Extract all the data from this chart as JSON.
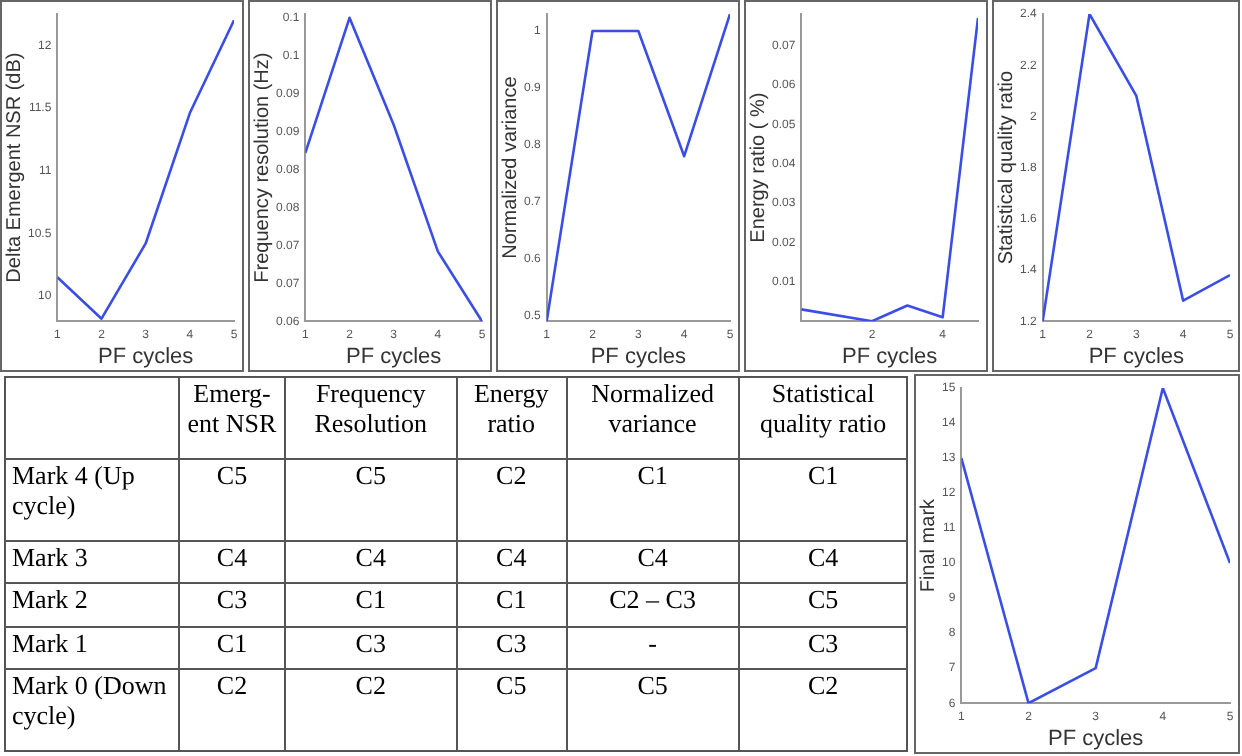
{
  "chart_data": [
    {
      "type": "line",
      "xlabel": "PF cycles",
      "ylabel": "Delta Emergent NSR (dB)",
      "x": [
        1,
        2,
        3,
        4,
        5
      ],
      "values": [
        10.15,
        9.82,
        10.42,
        11.46,
        12.2
      ],
      "color": "#3a4ee6",
      "xlim": [
        1,
        5
      ],
      "xticks": [
        1,
        2,
        3,
        4,
        5
      ],
      "ylim": [
        9.8,
        12.25
      ],
      "yticks": [
        10,
        10.5,
        11,
        11.5,
        12
      ],
      "grid": false,
      "marker": "none",
      "line_style": "solid"
    },
    {
      "type": "line",
      "xlabel": "PF cycles",
      "ylabel": "Frequency resolution (Hz)",
      "x": [
        1,
        2,
        3,
        4,
        5
      ],
      "values": [
        0.0822,
        0.1,
        0.0859,
        0.0692,
        0.06
      ],
      "color": "#3a4ee6",
      "xlim": [
        1,
        5
      ],
      "xticks": [
        1,
        2,
        3,
        4,
        5
      ],
      "ylim": [
        0.06,
        0.1005
      ],
      "yticks": [
        0.06,
        {
          "value": 0.065,
          "label": "0.07"
        },
        0.07,
        {
          "value": 0.075,
          "label": "0.08"
        },
        0.08,
        {
          "value": 0.085,
          "label": "0.09"
        },
        0.09,
        {
          "value": 0.095,
          "label": "0.1"
        },
        0.1
      ],
      "grid": false,
      "marker": "none",
      "line_style": "solid"
    },
    {
      "type": "line",
      "xlabel": "PF cycles",
      "ylabel": "Normalized variance",
      "x": [
        1,
        2,
        3,
        4,
        5
      ],
      "values": [
        0.49,
        1.0,
        1.0,
        0.78,
        1.03
      ],
      "color": "#3a4ee6",
      "xlim": [
        1,
        5
      ],
      "xticks": [
        1,
        2,
        3,
        4,
        5
      ],
      "ylim": [
        0.49,
        1.03
      ],
      "yticks": [
        0.5,
        0.6,
        0.7,
        0.8,
        0.9,
        1
      ],
      "grid": false,
      "marker": "none",
      "line_style": "solid"
    },
    {
      "type": "line",
      "xlabel": "PF cycles",
      "ylabel": "Energy ratio ( %)",
      "x": [
        0,
        2,
        3,
        4,
        5
      ],
      "values": [
        0.003,
        0,
        0.004,
        0.001,
        0.077
      ],
      "color": "#3a4ee6",
      "xlim": [
        0,
        5
      ],
      "xticks": [
        2,
        4
      ],
      "ylim": [
        0,
        0.078
      ],
      "yticks": [
        0.01,
        0.02,
        0.03,
        0.04,
        0.05,
        0.06,
        0.07
      ],
      "grid": false,
      "marker": "none",
      "line_style": "solid"
    },
    {
      "type": "line",
      "xlabel": "PF cycles",
      "ylabel": "Statistical quality ratio",
      "x": [
        1,
        2,
        3,
        4,
        5
      ],
      "values": [
        1.2,
        2.4,
        2.08,
        1.28,
        1.38
      ],
      "color": "#3a4ee6",
      "xlim": [
        1,
        5
      ],
      "xticks": [
        1,
        2,
        3,
        4,
        5
      ],
      "ylim": [
        1.2,
        2.4
      ],
      "yticks": [
        1.2,
        1.4,
        1.6,
        1.8,
        2,
        2.2,
        2.4
      ],
      "grid": false,
      "marker": "none",
      "line_style": "solid"
    },
    {
      "type": "other",
      "categories": [
        null,
        "Emerg-ent NSR",
        "Frequency Resolution",
        "Energy ratio",
        "Normalized variance",
        "Statistical quality ratio"
      ],
      "y_categories": [
        "Mark 4 (Up cycle)",
        "Mark 3",
        "Mark 2",
        "Mark 1",
        "Mark 0 (Down cycle)"
      ],
      "cell_labels": [
        [
          "C5",
          "C5",
          "C2",
          "C1",
          "C1"
        ],
        [
          "C4",
          "C4",
          "C4",
          "C4",
          "C4"
        ],
        [
          "C3",
          "C1",
          "C1",
          "C2 – C3",
          "C5"
        ],
        [
          "C1",
          "C3",
          "C3",
          "-",
          "C3"
        ],
        [
          "C2",
          "C2",
          "C5",
          "C5",
          "C2"
        ]
      ]
    },
    {
      "type": "line",
      "xlabel": "PF cycles",
      "ylabel": "Final mark",
      "x": [
        1,
        2,
        3,
        4,
        5
      ],
      "values": [
        13,
        6,
        7,
        15,
        10
      ],
      "color": "#3a4ee6",
      "xlim": [
        1,
        5
      ],
      "xticks": [
        1,
        2,
        3,
        4,
        5
      ],
      "ylim": [
        6,
        15
      ],
      "yticks": [
        6,
        7,
        8,
        9,
        10,
        11,
        12,
        13,
        14,
        15
      ],
      "grid": false,
      "marker": "none",
      "line_style": "solid"
    }
  ]
}
